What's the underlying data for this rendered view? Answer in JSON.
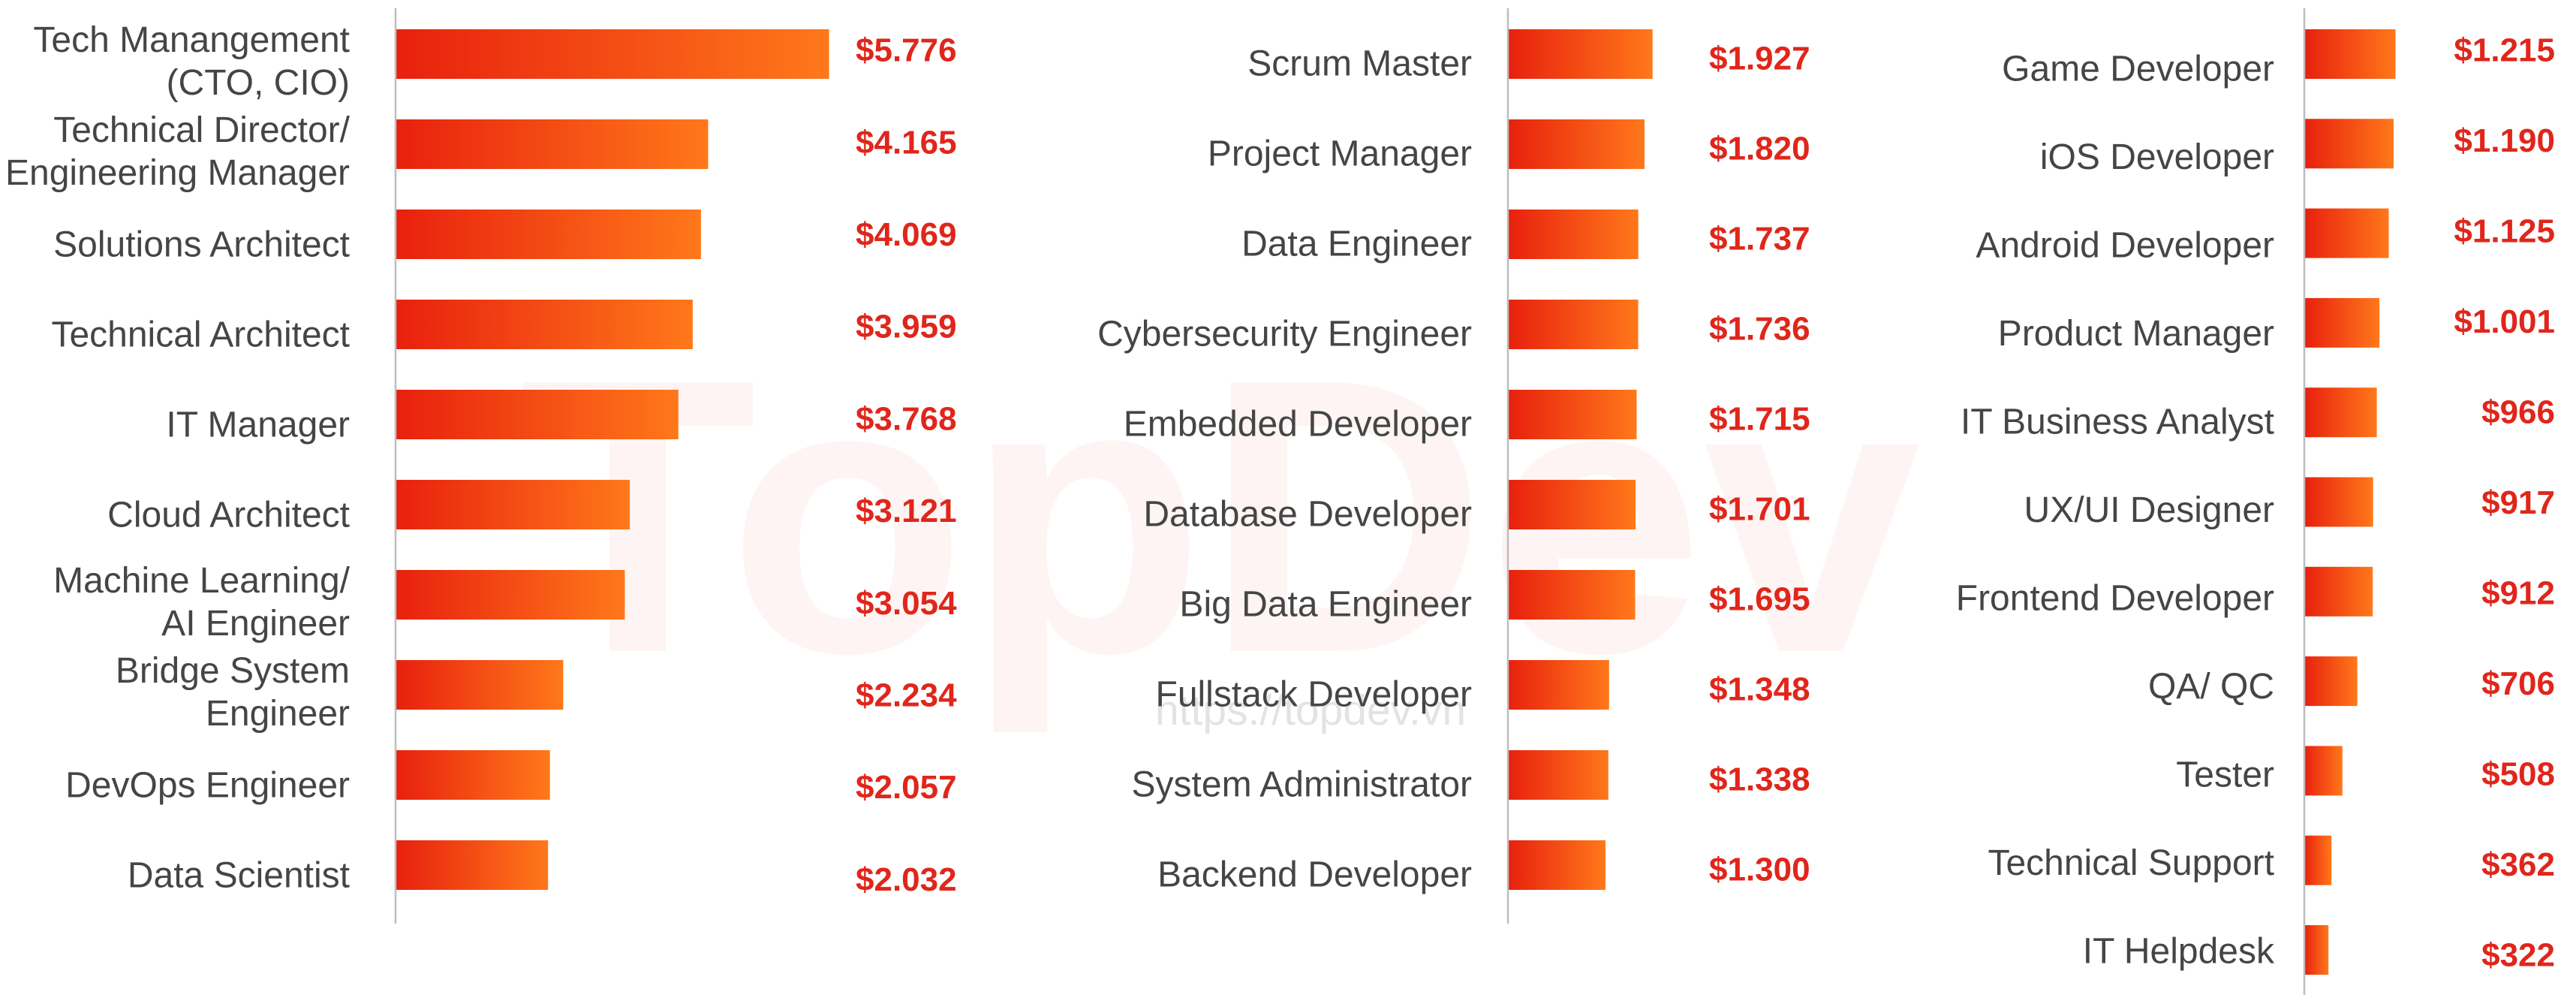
{
  "watermark": {
    "logo": "TopDev",
    "url": "https://topdev.vn"
  },
  "chart_data": [
    {
      "type": "bar",
      "orientation": "horizontal",
      "colors": [
        "#e8200e",
        "#ff781a"
      ],
      "value_color": "#e0261b",
      "categories": [
        "Tech Manangement\n(CTO, CIO)",
        "Technical Director/\nEngineering Manager",
        "Solutions Architect",
        "Technical Architect",
        "IT Manager",
        "Cloud Architect",
        "Machine Learning/\nAI Engineer",
        "Bridge System\nEngineer",
        "DevOps Engineer",
        "Data Scientist"
      ],
      "values": [
        5776,
        4165,
        4069,
        3959,
        3768,
        3121,
        3054,
        2234,
        2057,
        2032
      ],
      "value_labels": [
        "$5.776",
        "$4.165",
        "$4.069",
        "$3.959",
        "$3.768",
        "$3.121",
        "$3.054",
        "$2.234",
        "$2.057",
        "$2.032"
      ]
    },
    {
      "type": "bar",
      "orientation": "horizontal",
      "colors": [
        "#e8200e",
        "#ff781a"
      ],
      "value_color": "#e0261b",
      "categories": [
        "Scrum Master",
        "Project Manager",
        "Data Engineer",
        "Cybersecurity Engineer",
        "Embedded Developer",
        "Database Developer",
        "Big Data Engineer",
        "Fullstack Developer",
        "System Administrator",
        "Backend Developer"
      ],
      "values": [
        1927,
        1820,
        1737,
        1736,
        1715,
        1701,
        1695,
        1348,
        1338,
        1300
      ],
      "value_labels": [
        "$1.927",
        "$1.820",
        "$1.737",
        "$1.736",
        "$1.715",
        "$1.701",
        "$1.695",
        "$1.348",
        "$1.338",
        "$1.300"
      ]
    },
    {
      "type": "bar",
      "orientation": "horizontal",
      "colors": [
        "#e8200e",
        "#ff781a"
      ],
      "value_color": "#e0261b",
      "categories": [
        "Game Developer",
        "iOS Developer",
        "Android Developer",
        "Product Manager",
        "IT Business Analyst",
        "UX/UI Designer",
        "Frontend Developer",
        "QA/ QC",
        "Tester",
        "Technical Support",
        "IT Helpdesk"
      ],
      "values": [
        1215,
        1190,
        1125,
        1001,
        966,
        917,
        912,
        706,
        508,
        362,
        322
      ],
      "value_labels": [
        "$1.215",
        "$1.190",
        "$1.125",
        "$1.001",
        "$966",
        "$917",
        "$912",
        "$706",
        "$508",
        "$362",
        "$322"
      ]
    }
  ]
}
